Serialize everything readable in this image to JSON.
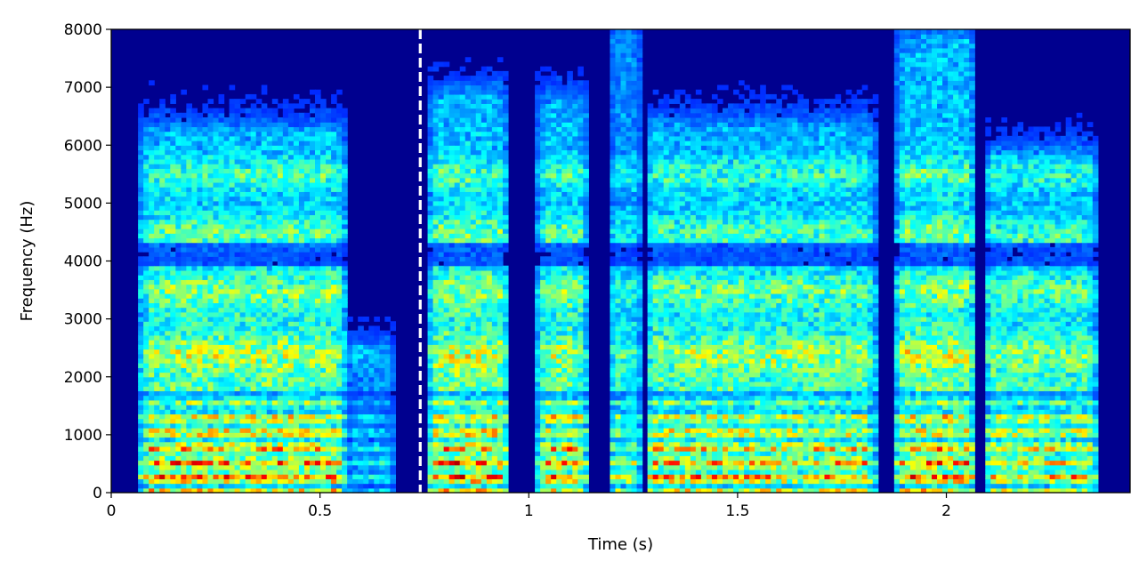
{
  "chart_data": {
    "type": "heatmap",
    "subtype": "spectrogram",
    "title": "",
    "xlabel": "Time (s)",
    "ylabel": "Frequency (Hz)",
    "xlim": [
      0,
      2.44
    ],
    "ylim": [
      0,
      8000
    ],
    "x_ticks": [
      0,
      0.5,
      1,
      1.5,
      2
    ],
    "x_tick_labels": [
      "0",
      "0.5",
      "1",
      "1.5",
      "2"
    ],
    "y_ticks": [
      0,
      1000,
      2000,
      3000,
      4000,
      5000,
      6000,
      7000,
      8000
    ],
    "y_tick_labels": [
      "0",
      "1000",
      "2000",
      "3000",
      "4000",
      "5000",
      "6000",
      "7000",
      "8000"
    ],
    "colormap": "jet",
    "colors": {
      "background_low": "#00008f",
      "high": "#ff2000",
      "marker_line": "#ffffff"
    },
    "grid": false,
    "legend": "none",
    "annotations": [
      {
        "type": "vertical-dashed-line",
        "x": 0.74,
        "color": "#ffffff"
      }
    ],
    "speech_segments": [
      {
        "t_start": 0.07,
        "t_end": 0.56,
        "intensity": 0.95,
        "f_cut": 6200
      },
      {
        "t_start": 0.56,
        "t_end": 0.68,
        "intensity": 0.4,
        "f_cut": 2500
      },
      {
        "t_start": 0.76,
        "t_end": 0.95,
        "intensity": 1.0,
        "f_cut": 6800
      },
      {
        "t_start": 1.02,
        "t_end": 1.14,
        "intensity": 0.95,
        "f_cut": 6700
      },
      {
        "t_start": 1.19,
        "t_end": 1.27,
        "intensity": 0.75,
        "f_cut": 7900
      },
      {
        "t_start": 1.28,
        "t_end": 1.83,
        "intensity": 0.9,
        "f_cut": 6300
      },
      {
        "t_start": 1.88,
        "t_end": 2.07,
        "intensity": 1.0,
        "f_cut": 7800
      },
      {
        "t_start": 2.09,
        "t_end": 2.36,
        "intensity": 0.85,
        "f_cut": 5800
      }
    ],
    "formant_bands_hz": [
      300,
      700,
      1200,
      2400,
      3500,
      4500,
      5500
    ]
  }
}
